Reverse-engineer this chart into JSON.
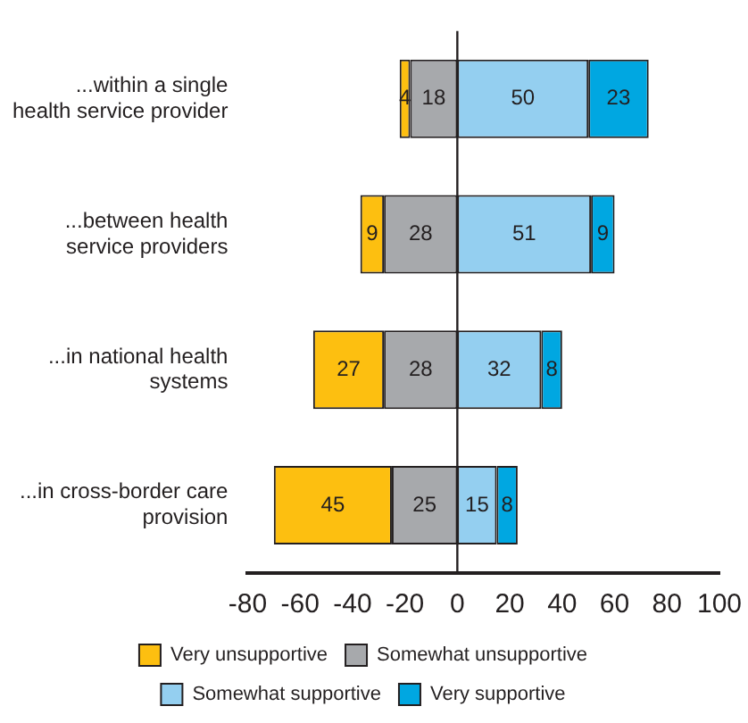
{
  "chart_data": {
    "type": "bar",
    "orientation": "horizontal",
    "categories": [
      "...within a single health service provider",
      "...between health service providers",
      "...in national health systems",
      "...in cross-border care provision"
    ],
    "series": [
      {
        "name": "Very unsupportive",
        "color": "#fdbf10",
        "values": [
          4,
          9,
          27,
          45
        ],
        "base": [
          -22,
          -37,
          -55,
          -70
        ]
      },
      {
        "name": "Somewhat unsupportive",
        "color": "#a7a9ac",
        "values": [
          18,
          28,
          28,
          25
        ],
        "base": [
          -18,
          -28,
          -28,
          -25
        ]
      },
      {
        "name": "Somewhat supportive",
        "color": "#94cff0",
        "values": [
          50,
          51,
          32,
          15
        ],
        "base": [
          0,
          0,
          0,
          0
        ]
      },
      {
        "name": "Very supportive",
        "color": "#00a7e1",
        "values": [
          23,
          9,
          8,
          8
        ],
        "base": [
          50,
          51,
          32,
          15
        ]
      }
    ],
    "xlim": [
      -80,
      100
    ],
    "xticks": [
      -80,
      -60,
      -40,
      -20,
      0,
      20,
      40,
      60,
      80,
      100
    ],
    "grid": false,
    "legend": "bottom",
    "data_labels": true,
    "ref_lines": [
      {
        "axis": "x",
        "value": 0,
        "color": "#231f20"
      }
    ]
  }
}
